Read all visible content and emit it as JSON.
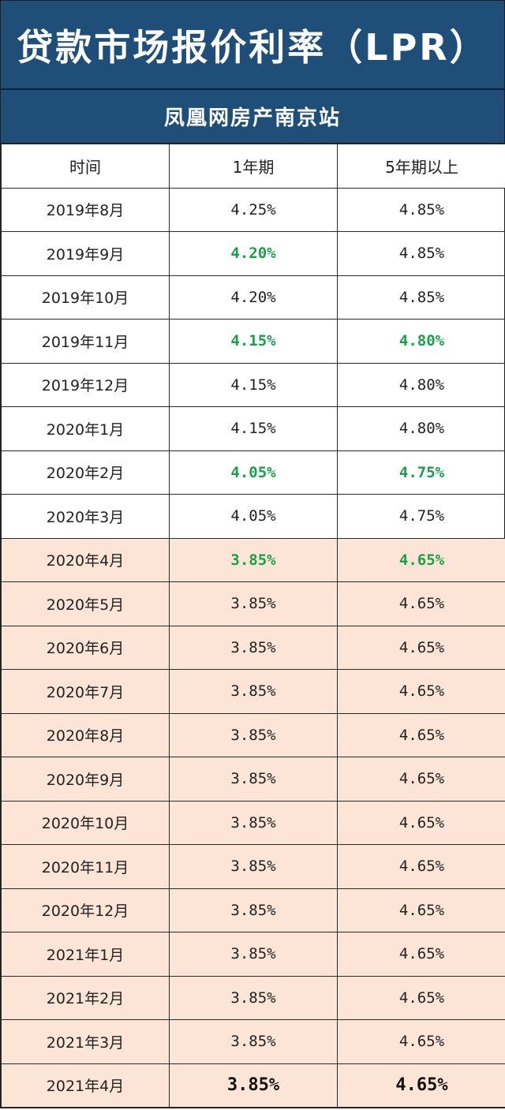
{
  "header": {
    "title": "贷款市场报价利率（LPR）",
    "subtitle": "凤凰网房产南京站"
  },
  "table": {
    "columns": [
      "时间",
      "1年期",
      "5年期以上"
    ],
    "rows": [
      {
        "date": "2019年8月",
        "one_year": "4.25%",
        "five_year": "4.85%",
        "one_green": false,
        "five_green": false,
        "shaded": false
      },
      {
        "date": "2019年9月",
        "one_year": "4.20%",
        "five_year": "4.85%",
        "one_green": true,
        "five_green": false,
        "shaded": false
      },
      {
        "date": "2019年10月",
        "one_year": "4.20%",
        "five_year": "4.85%",
        "one_green": false,
        "five_green": false,
        "shaded": false
      },
      {
        "date": "2019年11月",
        "one_year": "4.15%",
        "five_year": "4.80%",
        "one_green": true,
        "five_green": true,
        "shaded": false
      },
      {
        "date": "2019年12月",
        "one_year": "4.15%",
        "five_year": "4.80%",
        "one_green": false,
        "five_green": false,
        "shaded": false
      },
      {
        "date": "2020年1月",
        "one_year": "4.15%",
        "five_year": "4.80%",
        "one_green": false,
        "five_green": false,
        "shaded": false
      },
      {
        "date": "2020年2月",
        "one_year": "4.05%",
        "five_year": "4.75%",
        "one_green": true,
        "five_green": true,
        "shaded": false
      },
      {
        "date": "2020年3月",
        "one_year": "4.05%",
        "five_year": "4.75%",
        "one_green": false,
        "five_green": false,
        "shaded": false
      },
      {
        "date": "2020年4月",
        "one_year": "3.85%",
        "five_year": "4.65%",
        "one_green": true,
        "five_green": true,
        "shaded": true
      },
      {
        "date": "2020年5月",
        "one_year": "3.85%",
        "five_year": "4.65%",
        "one_green": false,
        "five_green": false,
        "shaded": true
      },
      {
        "date": "2020年6月",
        "one_year": "3.85%",
        "five_year": "4.65%",
        "one_green": false,
        "five_green": false,
        "shaded": true
      },
      {
        "date": "2020年7月",
        "one_year": "3.85%",
        "five_year": "4.65%",
        "one_green": false,
        "five_green": false,
        "shaded": true
      },
      {
        "date": "2020年8月",
        "one_year": "3.85%",
        "five_year": "4.65%",
        "one_green": false,
        "five_green": false,
        "shaded": true
      },
      {
        "date": "2020年9月",
        "one_year": "3.85%",
        "five_year": "4.65%",
        "one_green": false,
        "five_green": false,
        "shaded": true
      },
      {
        "date": "2020年10月",
        "one_year": "3.85%",
        "five_year": "4.65%",
        "one_green": false,
        "five_green": false,
        "shaded": true
      },
      {
        "date": "2020年11月",
        "one_year": "3.85%",
        "five_year": "4.65%",
        "one_green": false,
        "five_green": false,
        "shaded": true
      },
      {
        "date": "2020年12月",
        "one_year": "3.85%",
        "five_year": "4.65%",
        "one_green": false,
        "five_green": false,
        "shaded": true
      },
      {
        "date": "2021年1月",
        "one_year": "3.85%",
        "five_year": "4.65%",
        "one_green": false,
        "five_green": false,
        "shaded": true
      },
      {
        "date": "2021年2月",
        "one_year": "3.85%",
        "five_year": "4.65%",
        "one_green": false,
        "five_green": false,
        "shaded": true
      },
      {
        "date": "2021年3月",
        "one_year": "3.85%",
        "five_year": "4.65%",
        "one_green": false,
        "five_green": false,
        "shaded": true
      },
      {
        "date": "2021年4月",
        "one_year": "3.85%",
        "five_year": "4.65%",
        "one_green": false,
        "five_green": false,
        "shaded": true
      }
    ]
  },
  "colors": {
    "header_bg": "#1f4e79",
    "shaded_row": "#fce5d6",
    "decrease_green": "#1aa04a"
  }
}
